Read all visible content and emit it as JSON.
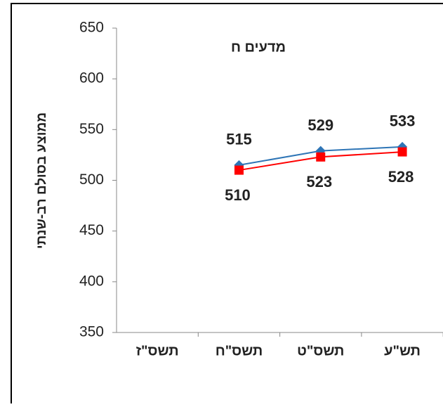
{
  "chart_data": {
    "type": "line",
    "title": "מדעים ח",
    "y_label": "ממוצע בסולם רב-שנתי",
    "categories": [
      "תשס\"ז",
      "תשס\"ח",
      "תשס\"ט",
      "תש\"ע"
    ],
    "series": [
      {
        "color": "#2e75b6",
        "marker": "diamond",
        "values": [
          null,
          515,
          529,
          533
        ]
      },
      {
        "color": "#ff0000",
        "marker": "square",
        "values": [
          null,
          510,
          523,
          528
        ]
      }
    ],
    "ylim": [
      350,
      650
    ],
    "yticks": [
      350,
      400,
      450,
      500,
      550,
      600,
      650
    ]
  }
}
